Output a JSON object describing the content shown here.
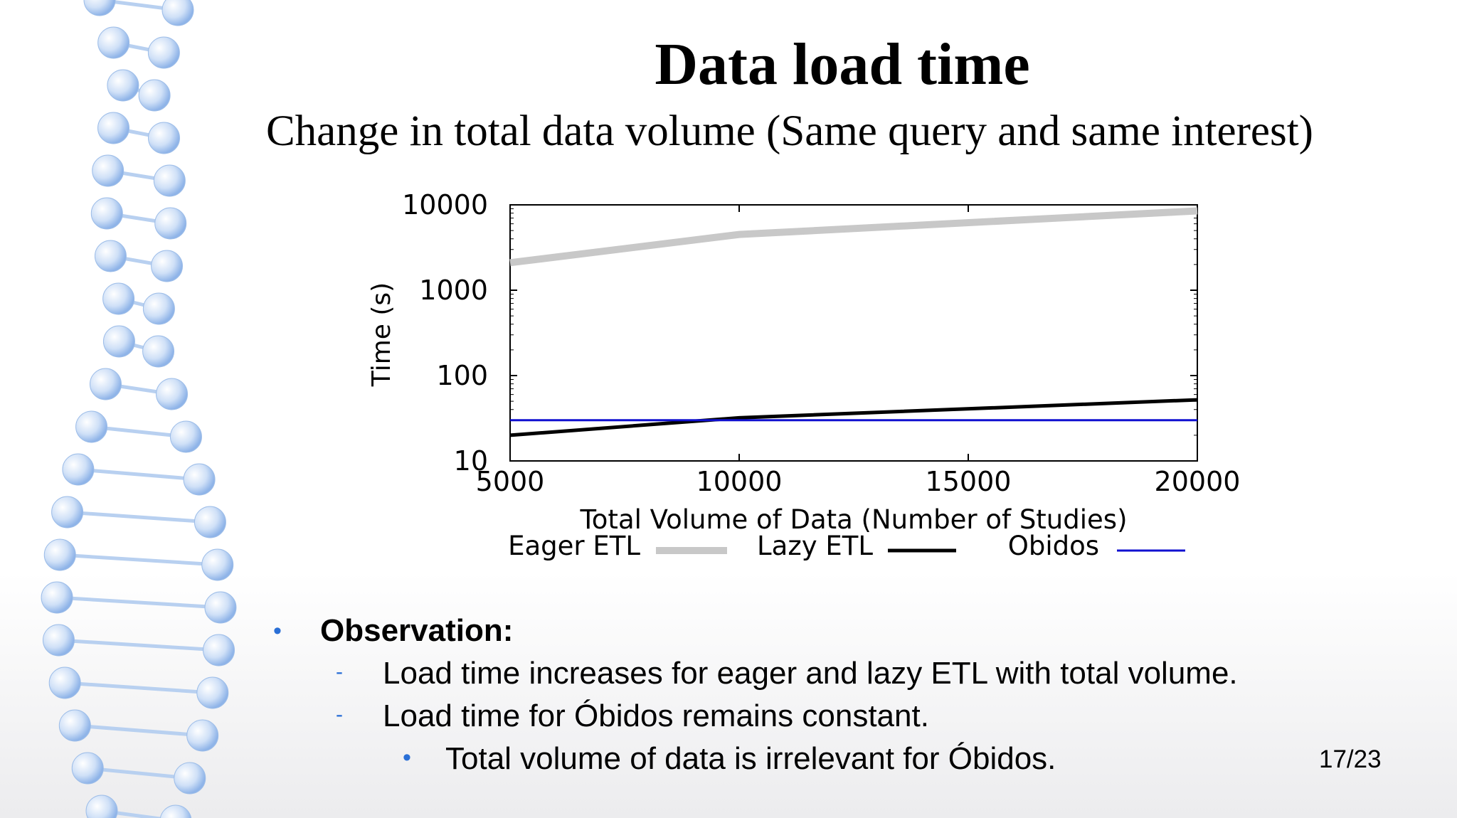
{
  "slide": {
    "title": "Data load time",
    "subtitle": "Change in total data volume (Same query and same interest)",
    "page_number": "17/23"
  },
  "bullets": {
    "observation": "Observation:",
    "point1": "Load time increases for eager and lazy ETL with total volume.",
    "point2": "Load time for Óbidos remains constant.",
    "subpoint": "Total volume of data is irrelevant for Óbidos."
  },
  "colors": {
    "eager": "#c8c8c8",
    "lazy": "#000000",
    "obidos": "#1010d0",
    "bullet": "#2a6fd6"
  },
  "chart_data": {
    "type": "line",
    "xlabel": "Total Volume of Data (Number of Studies)",
    "ylabel": "Time (s)",
    "xlim": [
      5000,
      20000
    ],
    "ylim": [
      10,
      10000
    ],
    "y_scale": "log",
    "x_ticks": [
      "5000",
      "10000",
      "15000",
      "20000"
    ],
    "y_ticks": [
      "10",
      "100",
      "1000",
      "10000"
    ],
    "legend_position": "bottom",
    "series": [
      {
        "name": "Eager ETL",
        "x": [
          5000,
          10000,
          20000
        ],
        "values": [
          2100,
          4500,
          8500
        ]
      },
      {
        "name": "Lazy ETL",
        "x": [
          5000,
          10000,
          20000
        ],
        "values": [
          20,
          32,
          52
        ]
      },
      {
        "name": "Obidos",
        "x": [
          5000,
          20000
        ],
        "values": [
          30,
          30
        ]
      }
    ]
  }
}
